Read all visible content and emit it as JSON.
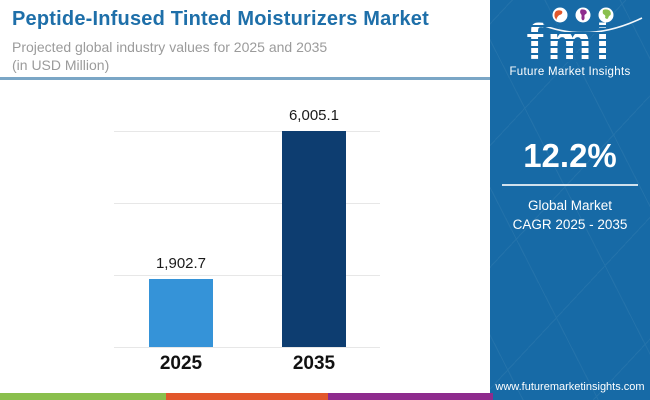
{
  "header": {
    "title": "Peptide-Infused Tinted Moisturizers Market",
    "subtitle_line1": "Projected global industry values for 2025 and 2035",
    "subtitle_line2": "(in USD Million)",
    "title_color": "#1e6fa9"
  },
  "chart_data": {
    "type": "bar",
    "title": "Peptide-Infused Tinted Moisturizers Market",
    "subtitle": "Projected global industry values for 2025 and 2035 (in USD Million)",
    "categories": [
      "2025",
      "2035"
    ],
    "values": [
      1902.7,
      6005.1
    ],
    "value_labels": [
      "1,902.7",
      "6,005.1"
    ],
    "xlabel": "",
    "ylabel": "USD Million",
    "ylim": [
      0,
      6000
    ],
    "gridlines": [
      0,
      2000,
      4000,
      6000
    ],
    "grid": "horizontal-only",
    "legend": "none",
    "bar_colors": [
      "#3593d8",
      "#0d3d70"
    ]
  },
  "sidebar": {
    "background": "#176aa6",
    "logo": {
      "text": "fmi",
      "subtext": "Future Market Insights",
      "icons": [
        "globe-americas-icon",
        "globe-europe-africa-icon",
        "globe-asia-icon"
      ]
    },
    "cagr_value": "12.2%",
    "cagr_label_line1": "Global Market",
    "cagr_label_line2": "CAGR 2025 - 2035",
    "website": "www.futuremarketinsights.com"
  },
  "footer": {
    "stripe_colors": [
      "#8abf4d",
      "#e2572b",
      "#8e2b8d"
    ],
    "stripe_widths": [
      166,
      162,
      165
    ]
  }
}
